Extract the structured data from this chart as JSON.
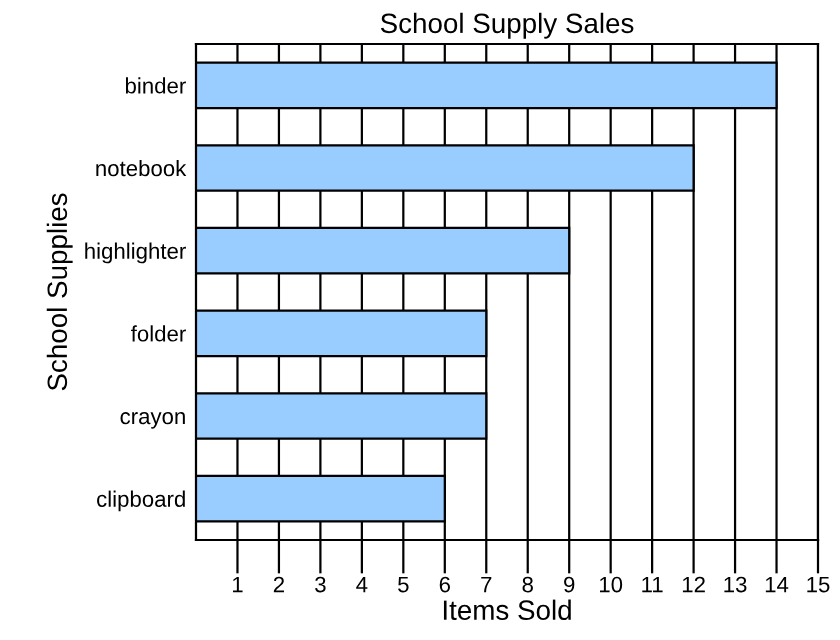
{
  "chart_data": {
    "type": "bar",
    "orientation": "horizontal",
    "title": "School Supply Sales",
    "xlabel": "Items Sold",
    "ylabel": "School Supplies",
    "categories": [
      "binder",
      "notebook",
      "highlighter",
      "folder",
      "crayon",
      "clipboard"
    ],
    "values": [
      14,
      12,
      9,
      7,
      7,
      6
    ],
    "color": "#99ccff",
    "xlim": [
      0,
      15
    ],
    "xticks": [
      1,
      2,
      3,
      4,
      5,
      6,
      7,
      8,
      9,
      10,
      11,
      12,
      13,
      14,
      15
    ],
    "grid": "x"
  }
}
